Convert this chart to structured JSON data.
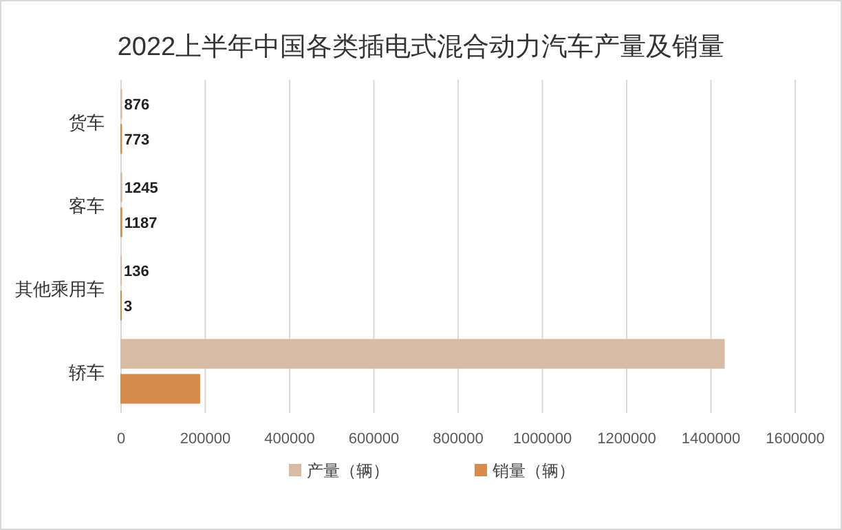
{
  "chart_data": {
    "type": "bar",
    "orientation": "horizontal",
    "title": "2022上半年中国各类插电式混合动力汽车产量及销量",
    "categories": [
      "货车",
      "客车",
      "其他乘用车",
      "轿车"
    ],
    "series": [
      {
        "name": "产量（辆）",
        "color": "#d8bba4",
        "values": [
          876,
          1245,
          136,
          1431000
        ],
        "value_labels": [
          "876",
          "1245",
          "136",
          null
        ]
      },
      {
        "name": "销量（辆）",
        "color": "#d68c4c",
        "values": [
          773,
          1187,
          3,
          186000
        ],
        "value_labels": [
          "773",
          "1187",
          "3",
          null
        ]
      }
    ],
    "xlim": [
      0,
      1600000
    ],
    "xticks": [
      0,
      200000,
      400000,
      600000,
      800000,
      1000000,
      1200000,
      1400000,
      1600000
    ],
    "grid": "x",
    "legend": "bottom"
  }
}
